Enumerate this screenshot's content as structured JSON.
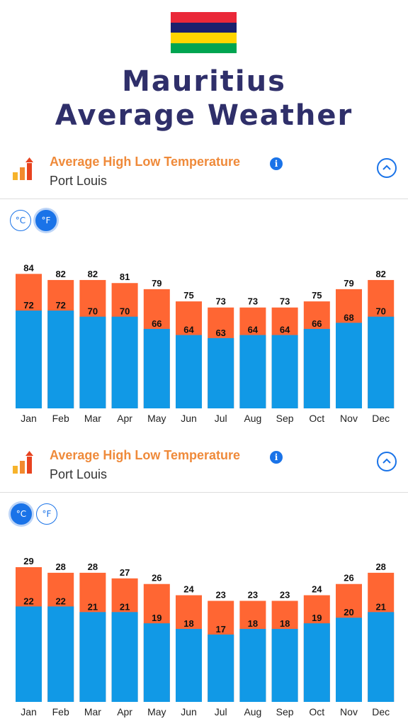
{
  "flag": {
    "name": "mauritius-flag",
    "stripes": [
      "#EA2839",
      "#1A206D",
      "#FFD500",
      "#00A551"
    ]
  },
  "title": {
    "line1": "Mauritius",
    "line2": "Average Weather"
  },
  "cards": [
    {
      "title": "Average High Low Temperature",
      "subtitle": "Port Louis",
      "info_icon": "i",
      "units": {
        "celsius": "°C",
        "fahrenheit": "°F",
        "selected": "fahrenheit"
      }
    },
    {
      "title": "Average High Low Temperature",
      "subtitle": "Port Louis",
      "info_icon": "i",
      "units": {
        "celsius": "°C",
        "fahrenheit": "°F",
        "selected": "celsius"
      }
    }
  ],
  "colors": {
    "high": "#FF6633",
    "low": "#1199E6",
    "accent": "#1A73E8",
    "title": "#2F2F6A",
    "card_title": "#EF8A3A"
  },
  "chart_data": [
    {
      "type": "bar",
      "unit": "°F",
      "categories": [
        "Jan",
        "Feb",
        "Mar",
        "Apr",
        "May",
        "Jun",
        "Jul",
        "Aug",
        "Sep",
        "Oct",
        "Nov",
        "Dec"
      ],
      "series": [
        {
          "values": [
            84,
            82,
            82,
            81,
            79,
            75,
            73,
            73,
            73,
            75,
            79,
            82
          ]
        },
        {
          "values": [
            72,
            72,
            70,
            70,
            66,
            64,
            63,
            64,
            64,
            66,
            68,
            70
          ]
        }
      ],
      "ylim": [
        40,
        85
      ],
      "grid": false
    },
    {
      "type": "bar",
      "unit": "°C",
      "categories": [
        "Jan",
        "Feb",
        "Mar",
        "Apr",
        "May",
        "Jun",
        "Jul",
        "Aug",
        "Sep",
        "Oct",
        "Nov",
        "Dec"
      ],
      "series": [
        {
          "values": [
            29,
            28,
            28,
            27,
            26,
            24,
            23,
            23,
            23,
            24,
            26,
            28
          ]
        },
        {
          "values": [
            22,
            22,
            21,
            21,
            19,
            18,
            17,
            18,
            18,
            19,
            20,
            21
          ]
        }
      ],
      "ylim": [
        5,
        29.5
      ],
      "grid": false
    }
  ]
}
